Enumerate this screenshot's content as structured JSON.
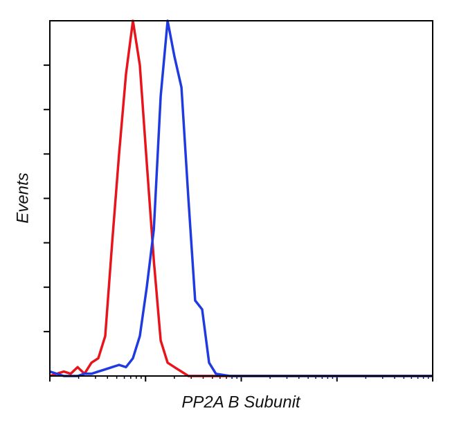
{
  "chart_data": {
    "type": "line",
    "x_label": "PP2A B Subunit",
    "y_label": "Events",
    "x": [
      1,
      1.18,
      1.4,
      1.65,
      1.95,
      2.3,
      2.72,
      3.21,
      3.79,
      4.48,
      5.29,
      6.25,
      7.38,
      8.71,
      10.3,
      12.2,
      14.4,
      17,
      20,
      23.7,
      28,
      33,
      39,
      46.1,
      54.4,
      76,
      236,
      1247,
      10000
    ],
    "series": [
      {
        "color": "#e8141b",
        "values": [
          0,
          0.05,
          0.1,
          0.05,
          0.2,
          0.05,
          0.3,
          0.4,
          0.9,
          3.0,
          5.0,
          6.8,
          8.0,
          7.0,
          4.8,
          2.6,
          0.8,
          0.3,
          0.2,
          0.1,
          0,
          0,
          0,
          0,
          0,
          0,
          0,
          0,
          0
        ]
      },
      {
        "color": "#1f3be0",
        "values": [
          0.1,
          0.05,
          0,
          0,
          0,
          0.05,
          0.05,
          0.1,
          0.15,
          0.2,
          0.25,
          0.2,
          0.4,
          0.9,
          2.0,
          3.3,
          6.3,
          8.0,
          7.2,
          6.5,
          4.0,
          1.7,
          1.5,
          0.3,
          0.05,
          0,
          0,
          0,
          0
        ]
      }
    ],
    "xlog": true,
    "xlim": [
      1,
      10000
    ],
    "xticks": [
      1,
      10,
      100,
      1000,
      10000
    ],
    "ylim": [
      0,
      8
    ],
    "yticks": [
      1,
      2,
      3,
      4,
      5,
      6,
      7
    ]
  }
}
